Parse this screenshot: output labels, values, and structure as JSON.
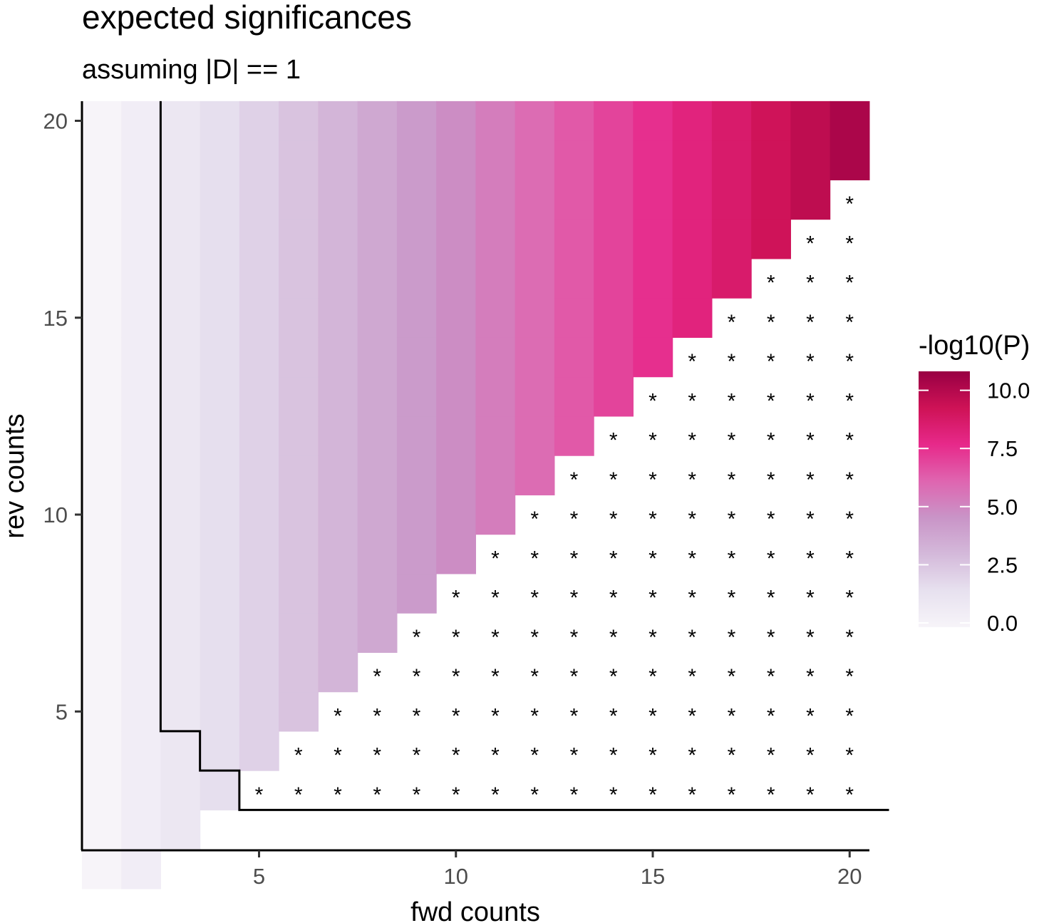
{
  "chart_data": {
    "type": "heatmap",
    "title": "expected significances",
    "subtitle": "assuming |D| == 1",
    "xlabel": "fwd counts",
    "ylabel": "rev counts",
    "xlim": [
      1,
      20
    ],
    "ylim": [
      1,
      20
    ],
    "x_ticks": [
      5,
      10,
      15,
      20
    ],
    "y_ticks": [
      5,
      10,
      15,
      20
    ],
    "legend": {
      "title": "-log10(P)",
      "position": "right",
      "ticks": [
        "0.0",
        "2.5",
        "5.0",
        "7.5",
        "10.0"
      ],
      "tick_values": [
        0,
        2.5,
        5,
        7.5,
        10
      ],
      "range": [
        0,
        11
      ],
      "colors": [
        "#f7f4f9",
        "#e7e1ef",
        "#d4b9da",
        "#c994c7",
        "#df65b0",
        "#e7298a",
        "#ce1256",
        "#980043"
      ]
    },
    "cell_rule": "cell (fwd, rev) shown when rev >= fwd - 1; value depends on fwd: 0.55 * (fwd - 1)",
    "star_rule": "asterisk drawn at (fwd, rev) when fwd >= rev + 2 and rev >= 3",
    "star_symbol": "*",
    "boundary": [
      [
        2.5,
        20.5
      ],
      [
        2.5,
        4.5
      ],
      [
        3.5,
        4.5
      ],
      [
        3.5,
        3.5
      ],
      [
        4.5,
        3.5
      ],
      [
        4.5,
        2.5
      ],
      [
        21,
        2.5
      ]
    ],
    "grid": false
  }
}
